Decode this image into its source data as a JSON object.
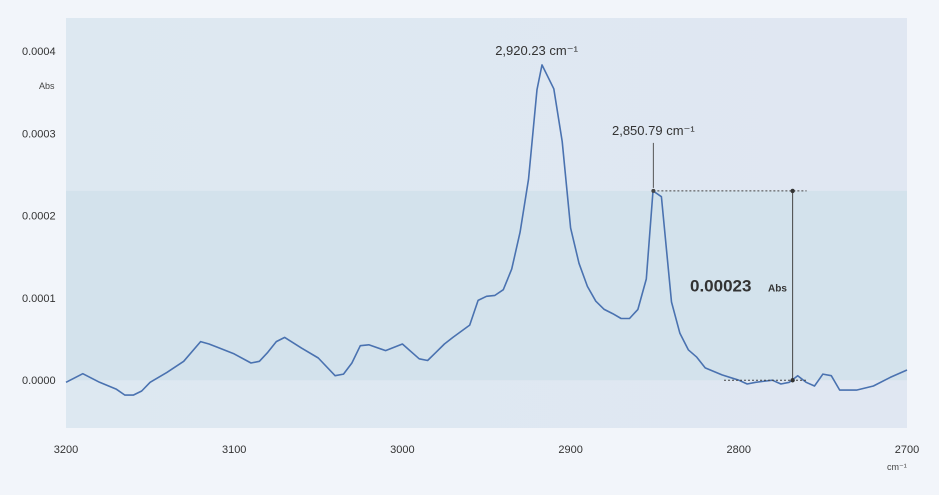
{
  "chart_data": {
    "type": "line",
    "title": "",
    "xlabel": "",
    "ylabel": "",
    "y_unit_label": "Abs",
    "x_unit_label": "cm⁻¹",
    "xlim": [
      3200,
      2700
    ],
    "ylim": [
      -5.8e-05,
      0.00044
    ],
    "x_reversed": true,
    "grid": false,
    "x_ticks": [
      {
        "value": 3200,
        "label": "3200"
      },
      {
        "value": 3100,
        "label": "3100"
      },
      {
        "value": 3000,
        "label": "3000"
      },
      {
        "value": 2900,
        "label": "2900"
      },
      {
        "value": 2800,
        "label": "2800"
      },
      {
        "value": 2700,
        "label": "2700"
      }
    ],
    "y_ticks": [
      {
        "value": 0.0004,
        "label": "0.0004"
      },
      {
        "value": 0.0003,
        "label": "0.0003"
      },
      {
        "value": 0.0002,
        "label": "0.0002"
      },
      {
        "value": 0.0001,
        "label": "0.0001"
      },
      {
        "value": 0.0,
        "label": "0.0000"
      }
    ],
    "series": [
      {
        "color": "#4a72b0",
        "x": [
          3200,
          3190,
          3180,
          3170,
          3165,
          3160,
          3155,
          3150,
          3140,
          3130,
          3120,
          3115,
          3110,
          3100,
          3090,
          3085,
          3080,
          3075,
          3070,
          3060,
          3050,
          3040,
          3035,
          3030,
          3025,
          3020,
          3010,
          3000,
          2990,
          2985,
          2980,
          2975,
          2970,
          2960,
          2955,
          2950,
          2945,
          2940,
          2935,
          2930,
          2925,
          2920,
          2917,
          2910,
          2905,
          2900,
          2895,
          2890,
          2885,
          2880,
          2875,
          2870,
          2865,
          2860,
          2855,
          2851,
          2846,
          2840,
          2835,
          2830,
          2825,
          2820,
          2810,
          2800,
          2795,
          2790,
          2780,
          2775,
          2770,
          2765,
          2760,
          2755,
          2750,
          2745,
          2740,
          2730,
          2720,
          2710,
          2700
        ],
        "y": [
          -2.5e-06,
          8e-06,
          -2.5e-06,
          -1.1e-05,
          -1.8e-05,
          -1.8e-05,
          -1.3e-05,
          -2.5e-06,
          9.5e-06,
          2.3e-05,
          4.7e-05,
          4.4e-05,
          4e-05,
          3.2e-05,
          2.1e-05,
          2.3e-05,
          3.4e-05,
          4.7e-05,
          5.2e-05,
          3.9e-05,
          2.7e-05,
          5.5e-06,
          7.5e-06,
          2.1e-05,
          4.2e-05,
          4.3e-05,
          3.6e-05,
          4.4e-05,
          2.6e-05,
          2.4e-05,
          3.4e-05,
          4.4e-05,
          5.2e-05,
          6.7e-05,
          9.7e-05,
          0.000102,
          0.000103,
          0.00011,
          0.000135,
          0.00018,
          0.000244,
          0.000353,
          0.000383,
          0.000354,
          0.00029,
          0.000185,
          0.000142,
          0.000114,
          9.6e-05,
          8.6e-05,
          8.1e-05,
          7.5e-05,
          7.5e-05,
          8.6e-05,
          0.000123,
          0.00023,
          0.000223,
          9.5e-05,
          5.7e-05,
          3.7e-05,
          2.8e-05,
          1.5e-05,
          6.5e-06,
          0.0,
          -4.5e-06,
          -2.5e-06,
          0.0,
          -4.5e-06,
          -2.5e-06,
          5.5e-06,
          -2.5e-06,
          -7e-06,
          7.5e-06,
          5.5e-06,
          -1.2e-05,
          -1.2e-05,
          -7e-06,
          3.5e-06,
          1.25e-05
        ]
      }
    ],
    "bands": [
      {
        "y_from": 0.0,
        "y_to": 0.00023
      }
    ],
    "annotations": [
      {
        "text": "2,920.23 cm⁻¹",
        "x": 2920.23,
        "y": 0.000383
      },
      {
        "text": "2,850.79 cm⁻¹",
        "x": 2850.79,
        "y": 0.00023
      }
    ],
    "measurement": {
      "value_text": "0.00023",
      "unit_text": "Abs",
      "y_from": 0.0,
      "y_to": 0.00023,
      "x": 2768
    }
  }
}
